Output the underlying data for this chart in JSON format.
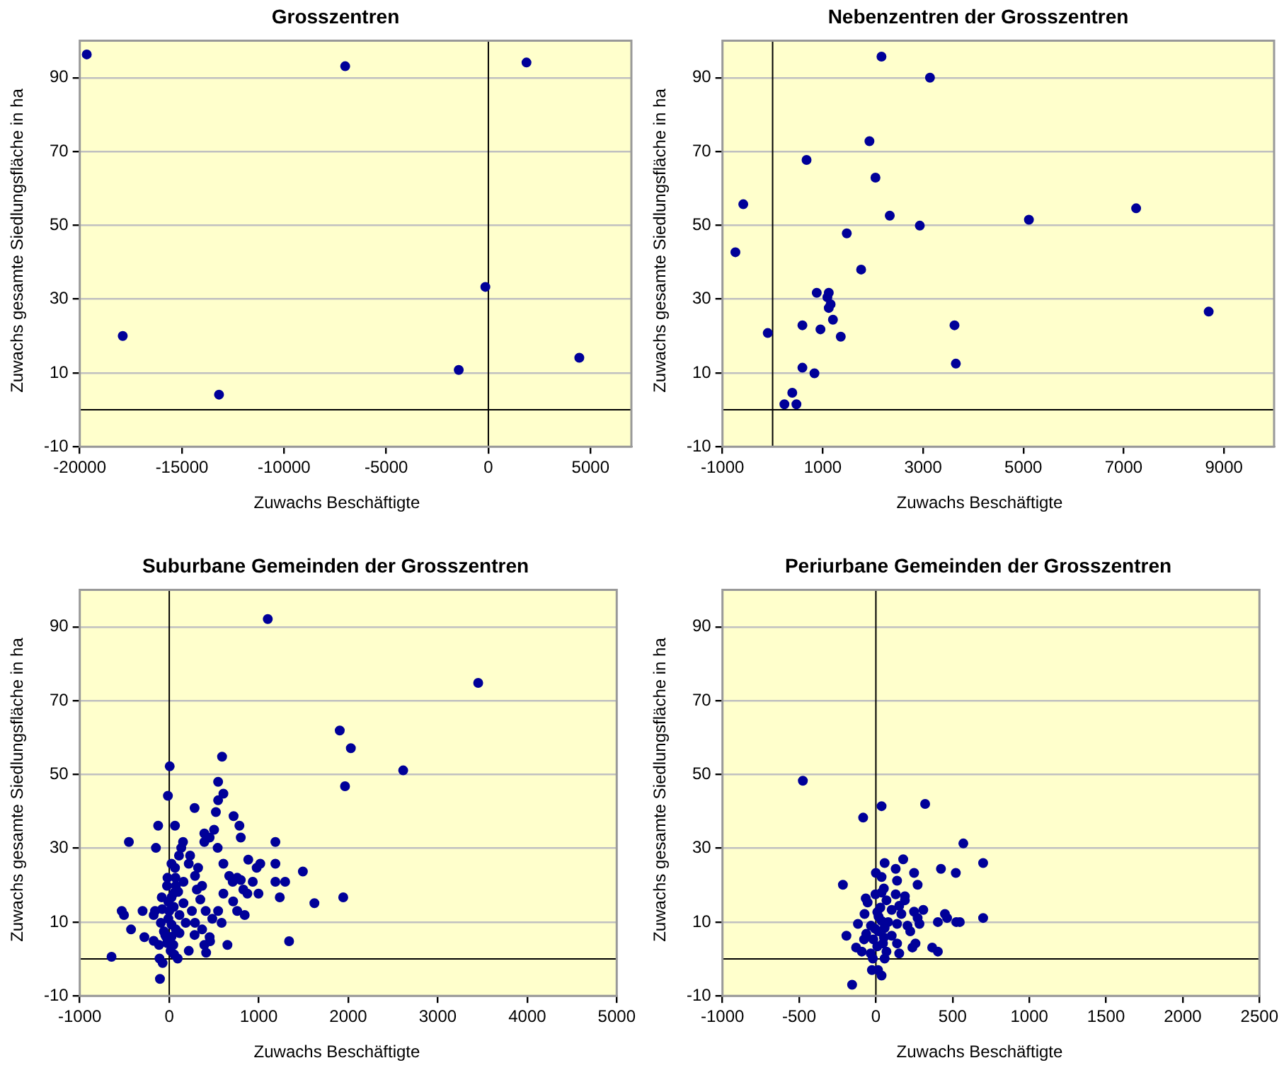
{
  "chart_data": [
    {
      "type": "scatter",
      "title": "Grosszentren",
      "xlabel": "Zuwachs Beschäftigte",
      "ylabel": "Zuwachs gesamte Siedlungsfläche in ha",
      "color": "#000099",
      "marker": "circle",
      "grid": "y",
      "x": [
        -19657,
        -17896,
        -13184,
        -7008,
        -1450,
        -147,
        1866,
        4451
      ],
      "values": [
        96.3,
        20.0,
        4.1,
        93.1,
        10.8,
        33.3,
        94.1,
        14.1
      ],
      "xlim": [
        -20000,
        7000
      ],
      "xticks": [
        -20000,
        -15000,
        -10000,
        -5000,
        0,
        5000
      ],
      "ylim": [
        -10,
        100
      ],
      "yticks": [
        -10,
        10,
        30,
        50,
        70,
        90
      ]
    },
    {
      "type": "scatter",
      "title": "Nebenzentren der Grosszentren",
      "xlabel": "Zuwachs Beschäftigte",
      "ylabel": "Zuwachs gesamte Siedlungsfläche in ha",
      "color": "#000099",
      "marker": "circle",
      "grid": "y",
      "x": [
        2171,
        3138,
        1931,
        677,
        2051,
        -585,
        7249,
        2336,
        5111,
        2935,
        1479,
        -742,
        1765,
        880,
        1120,
        1092,
        1157,
        1120,
        8696,
        1203,
        594,
        3627,
        954,
        -97,
        1359,
        3654,
        594,
        834,
        392,
        235,
        475
      ],
      "values": [
        95.7,
        90,
        72.8,
        67.7,
        62.9,
        55.7,
        54.6,
        52.6,
        51.5,
        49.9,
        47.8,
        42.7,
        38.0,
        31.7,
        31.7,
        30.5,
        28.6,
        27.6,
        26.6,
        24.4,
        22.9,
        22.9,
        21.8,
        20.8,
        19.8,
        12.5,
        11.4,
        9.9,
        4.6,
        1.5,
        1.5
      ],
      "xlim": [
        -1000,
        10000
      ],
      "xticks": [
        -1000,
        1000,
        3000,
        5000,
        7000,
        9000
      ],
      "ylim": [
        -10,
        100
      ],
      "yticks": [
        -10,
        10,
        30,
        50,
        70,
        90
      ]
    },
    {
      "type": "scatter",
      "title": "Suburbane Gemeinden der Grosszentren",
      "xlabel": "Zuwachs Beschäftigte",
      "ylabel": "Zuwachs gesamte Siedlungsfläche in ha",
      "color": "#000099",
      "marker": "circle",
      "grid": "y",
      "x": [
        1101,
        3452,
        1905,
        2029,
        2614,
        1964,
        590,
        5,
        -15,
        546,
        605,
        546,
        283,
        521,
        719,
        784,
        -124,
        64,
        501,
        392,
        451,
        799,
        392,
        -451,
        1186,
        154,
        -149,
        134,
        541,
        109,
        233,
        883,
        25,
        605,
        1186,
        1017,
        64,
        322,
        218,
        977,
        1493,
        288,
        670,
        -20,
        69,
        759,
        799,
        159,
        1186,
        1295,
        933,
        709,
        367,
        -25,
        74,
        308,
        828,
        99,
        873,
        605,
        997,
        -84,
        1235,
        1944,
        347,
        714,
        1622,
        159,
        50,
        -79,
        -531,
        -298,
        -159,
        253,
        407,
        546,
        759,
        -506,
        843,
        114,
        -174,
        481,
        -94,
        288,
        585,
        184,
        25,
        -427,
        367,
        -60,
        114,
        283,
        -278,
        451,
        456,
        1339,
        -174,
        650,
        392,
        45,
        -114,
        218,
        412,
        -645,
        94,
        -109,
        -74,
        -104,
        -25,
        -35,
        25,
        -10,
        0,
        -10,
        25,
        55,
        -45,
        74,
        15,
        55
      ],
      "values": [
        92.1,
        74.8,
        61.9,
        57.1,
        51.1,
        46.8,
        54.8,
        52.2,
        44.2,
        48.0,
        44.8,
        43.0,
        40.9,
        39.8,
        38.7,
        36.1,
        36.1,
        36.1,
        35.0,
        34.0,
        32.9,
        32.9,
        31.7,
        31.7,
        31.7,
        31.7,
        30.1,
        30.1,
        30.1,
        28.0,
        28.0,
        26.9,
        25.8,
        25.8,
        25.8,
        25.8,
        24.7,
        24.7,
        25.8,
        24.7,
        23.7,
        22.5,
        22.5,
        22.0,
        22.0,
        22.0,
        21.4,
        20.9,
        20.9,
        20.9,
        20.9,
        20.9,
        19.8,
        19.8,
        19.8,
        18.8,
        18.8,
        18.2,
        17.7,
        17.7,
        17.7,
        16.7,
        16.7,
        16.7,
        16.1,
        15.6,
        15.1,
        15.1,
        14.1,
        13.5,
        13.0,
        13.0,
        13.0,
        13.0,
        13.0,
        13.0,
        13.0,
        11.9,
        11.9,
        11.9,
        11.9,
        10.9,
        9.8,
        9.8,
        9.8,
        9.8,
        9.3,
        8.0,
        8.0,
        7.5,
        7.0,
        6.5,
        5.9,
        5.9,
        4.8,
        4.8,
        4.9,
        3.8,
        3.8,
        3.8,
        3.8,
        2.2,
        1.7,
        0.6,
        0.1,
        0.1,
        -1.1,
        -5.4,
        4.3,
        6.0,
        6.0,
        10.9,
        13.0,
        15.5,
        16.7,
        17.9,
        6.5,
        8.0,
        2.2,
        1.2
      ],
      "xlim": [
        -1000,
        5000
      ],
      "xticks": [
        -1000,
        0,
        1000,
        2000,
        3000,
        4000,
        5000
      ],
      "ylim": [
        -10,
        100
      ],
      "yticks": [
        -10,
        10,
        30,
        50,
        70,
        90
      ]
    },
    {
      "type": "scatter",
      "title": "Periurbane Gemeinden der Grosszentren",
      "xlabel": "Zuwachs Beschäftigte",
      "ylabel": "Zuwachs gesamte Siedlungsfläche in ha",
      "color": "#000099",
      "marker": "circle",
      "grid": "y",
      "x": [
        -476,
        37,
        321,
        -83,
        570,
        699,
        178,
        57,
        129,
        424,
        249,
        521,
        0,
        37,
        138,
        -215,
        272,
        52,
        37,
        -3,
        129,
        189,
        -66,
        69,
        189,
        -54,
        152,
        29,
        309,
        103,
        249,
        450,
        166,
        -74,
        699,
        464,
        272,
        404,
        524,
        547,
        -117,
        138,
        206,
        284,
        -32,
        57,
        224,
        17,
        -192,
        -63,
        103,
        -17,
        -77,
        258,
        138,
        46,
        238,
        -129,
        367,
        -92,
        404,
        152,
        -34,
        69,
        -20,
        57,
        -26,
        14,
        37,
        -155,
        17,
        9,
        37,
        80,
        -6,
        52,
        9
      ],
      "values": [
        48.3,
        41.4,
        42.0,
        38.3,
        31.3,
        26.0,
        27.0,
        26.0,
        24.4,
        24.4,
        23.3,
        23.3,
        23.3,
        22.2,
        21.2,
        20.1,
        20.1,
        19.1,
        18.0,
        17.5,
        17.5,
        17.0,
        16.4,
        15.9,
        15.9,
        15.3,
        14.4,
        13.9,
        13.3,
        13.3,
        12.8,
        12.2,
        12.2,
        12.2,
        11.1,
        11.1,
        11.1,
        10.0,
        10.0,
        10.0,
        9.5,
        9.5,
        9.0,
        9.5,
        9.0,
        8.4,
        7.5,
        7.5,
        6.3,
        6.8,
        6.3,
        5.3,
        5.3,
        4.2,
        4.2,
        4.2,
        3.1,
        3.1,
        3.1,
        2.0,
        2.0,
        1.5,
        1.5,
        2.0,
        0.1,
        0.1,
        -3.0,
        -3.0,
        -4.5,
        -7.0,
        11.5,
        12.7,
        10.3,
        10.0,
        8.2,
        5.8,
        3.4
      ],
      "xlim": [
        -1000,
        2500
      ],
      "xticks": [
        -1000,
        -500,
        0,
        500,
        1000,
        1500,
        2000,
        2500
      ],
      "ylim": [
        -10,
        100
      ],
      "yticks": [
        -10,
        10,
        30,
        50,
        70,
        90
      ]
    }
  ]
}
